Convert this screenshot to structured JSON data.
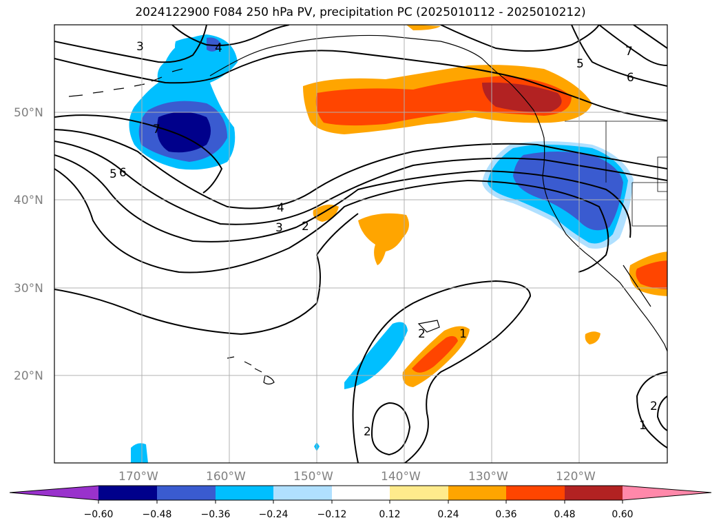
{
  "title": "2024122900 F084 250 hPa PV, precipitation PC (2025010112 - 2025010212)",
  "lat_labels": [
    {
      "text": "50°N",
      "lat": 50
    },
    {
      "text": "40°N",
      "lat": 40
    },
    {
      "text": "30°N",
      "lat": 30
    },
    {
      "text": "20°N",
      "lat": 20
    }
  ],
  "lon_labels": [
    {
      "text": "170°W",
      "lon": -170
    },
    {
      "text": "160°W",
      "lon": -160
    },
    {
      "text": "150°W",
      "lon": -150
    },
    {
      "text": "140°W",
      "lon": -140
    },
    {
      "text": "130°W",
      "lon": -130
    },
    {
      "text": "120°W",
      "lon": -120
    }
  ],
  "colorbar": {
    "colors": [
      "#9932cc",
      "#00008b",
      "#3a5bd0",
      "#00bfff",
      "#b0e0ff",
      "#ffffff",
      "#ffeb8c",
      "#ffa500",
      "#ff4500",
      "#b22222",
      "#ff88aa"
    ],
    "ticks": [
      "−0.60",
      "−0.48",
      "−0.36",
      "−0.24",
      "−0.12",
      "0.12",
      "0.24",
      "0.36",
      "0.48",
      "0.60"
    ]
  },
  "pv_contour_labels": [
    "3",
    "4",
    "7",
    "5",
    "6",
    "7",
    "5",
    "6",
    "4",
    "3",
    "2",
    "2",
    "1",
    "2",
    "1",
    "2"
  ]
}
